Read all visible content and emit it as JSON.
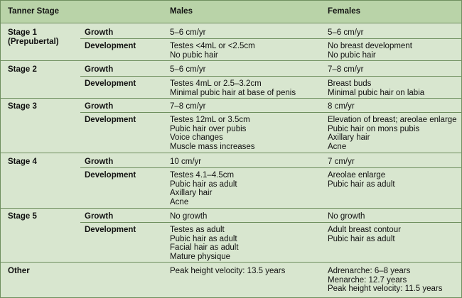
{
  "table": {
    "headers": [
      "Tanner Stage",
      "",
      "Males",
      "Females"
    ],
    "sections": [
      {
        "stage": "Stage 1\n(Prepubertal)",
        "rows": [
          {
            "label": "Growth",
            "males": "5–6 cm/yr",
            "females": "5–6 cm/yr"
          },
          {
            "label": "Development",
            "males": "Testes <4mL or <2.5cm\nNo pubic hair",
            "females": "No breast development\nNo pubic hair"
          }
        ]
      },
      {
        "stage": "Stage 2",
        "rows": [
          {
            "label": "Growth",
            "males": "5–6 cm/yr",
            "females": "7–8 cm/yr"
          },
          {
            "label": "Development",
            "males": "Testes 4mL or 2.5–3.2cm\nMinimal pubic hair at base of penis",
            "females": "Breast buds\nMinimal pubic hair on labia"
          }
        ]
      },
      {
        "stage": "Stage 3",
        "rows": [
          {
            "label": "Growth",
            "males": "7–8 cm/yr",
            "females": "8 cm/yr"
          },
          {
            "label": "Development",
            "males": "Testes 12mL or 3.5cm\nPubic hair over pubis\nVoice changes\nMuscle mass increases",
            "females": "Elevation of breast; areolae enlarge\nPubic hair on mons pubis\nAxillary hair\nAcne"
          }
        ]
      },
      {
        "stage": "Stage 4",
        "rows": [
          {
            "label": "Growth",
            "males": "10 cm/yr",
            "females": "7 cm/yr"
          },
          {
            "label": "Development",
            "males": "Testes 4.1–4.5cm\nPubic hair as adult\nAxillary hair\nAcne",
            "females": "Areolae enlarge\nPubic hair as adult"
          }
        ]
      },
      {
        "stage": "Stage 5",
        "rows": [
          {
            "label": "Growth",
            "males": "No growth",
            "females": "No growth"
          },
          {
            "label": "Development",
            "males": "Testes as adult\nPubic hair as adult\nFacial hair as adult\nMature physique",
            "females": "Adult breast contour\nPubic hair as adult"
          }
        ]
      },
      {
        "stage": "Other",
        "rows": [
          {
            "label": "",
            "males": "Peak height velocity: 13.5 years",
            "females": "Adrenarche: 6–8 years\nMenarche: 12.7 years\nPeak height velocity: 11.5 years"
          }
        ]
      }
    ]
  }
}
